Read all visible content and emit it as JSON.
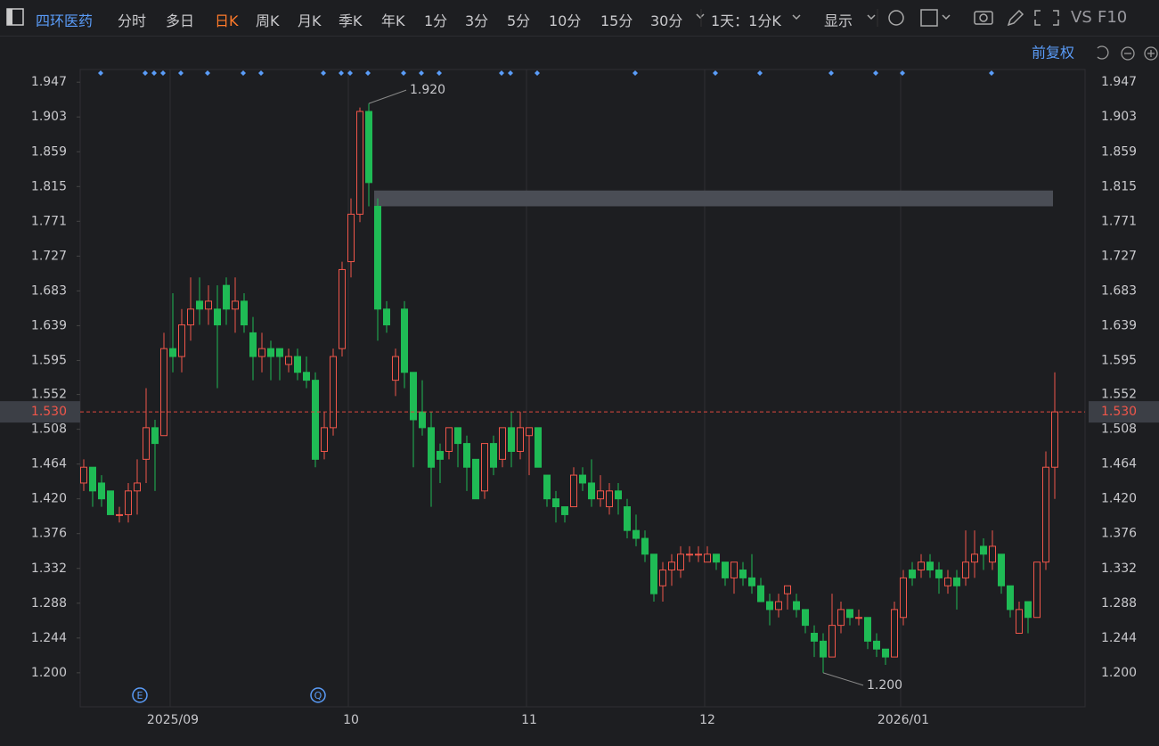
{
  "toolbar": {
    "stock_name": "四环医药",
    "periods": [
      "分时",
      "多日",
      "日K",
      "周K",
      "月K",
      "季K",
      "年K",
      "1分",
      "3分",
      "5分",
      "10分",
      "15分",
      "30分"
    ],
    "active_index": 2,
    "interval": "1天：1分K",
    "display": "显示",
    "vs": "VS",
    "f10": "F10",
    "adjust": "前复权"
  },
  "chart_data": {
    "type": "candlestick",
    "categories": [
      null,
      null,
      null,
      null,
      null,
      null,
      null,
      null,
      null,
      null,
      "2025/09",
      null,
      null,
      null,
      null,
      null,
      null,
      null,
      null,
      null,
      null,
      null,
      null,
      null,
      null,
      null,
      null,
      null,
      null,
      null,
      "10",
      null,
      null,
      null,
      null,
      null,
      null,
      null,
      null,
      null,
      null,
      null,
      null,
      null,
      null,
      null,
      null,
      null,
      null,
      null,
      "11",
      null,
      null,
      null,
      null,
      null,
      null,
      null,
      null,
      null,
      null,
      null,
      null,
      null,
      null,
      null,
      null,
      null,
      null,
      null,
      "12",
      null,
      null,
      null,
      null,
      null,
      null,
      null,
      null,
      null,
      null,
      null,
      null,
      null,
      null,
      null,
      null,
      null,
      null,
      null,
      null,
      null,
      "2026/01",
      null,
      null,
      null,
      null,
      null,
      null,
      null,
      null,
      null,
      null,
      null,
      null,
      null,
      null,
      null,
      null,
      null
    ],
    "open": [
      1.44,
      1.46,
      1.44,
      1.43,
      1.4,
      1.4,
      1.43,
      1.47,
      1.51,
      1.5,
      1.61,
      1.6,
      1.64,
      1.67,
      1.66,
      1.66,
      1.69,
      1.66,
      1.67,
      1.63,
      1.6,
      1.61,
      1.61,
      1.59,
      1.6,
      1.58,
      1.57,
      1.48,
      1.51,
      1.61,
      1.72,
      1.78,
      1.91,
      1.79,
      1.66,
      1.57,
      1.66,
      1.58,
      1.53,
      1.51,
      1.48,
      1.48,
      1.51,
      1.49,
      1.47,
      1.43,
      1.49,
      1.47,
      1.51,
      1.48,
      1.5,
      1.51,
      1.45,
      1.42,
      1.41,
      1.41,
      1.45,
      1.44,
      1.42,
      1.41,
      1.43,
      1.41,
      1.38,
      1.37,
      1.35,
      1.31,
      1.33,
      1.33,
      1.35,
      1.35,
      1.34,
      1.35,
      1.34,
      1.32,
      1.33,
      1.32,
      1.31,
      1.29,
      1.28,
      1.3,
      1.29,
      1.28,
      1.25,
      1.24,
      1.22,
      1.26,
      1.28,
      1.27,
      1.27,
      1.24,
      1.23,
      1.22,
      1.27,
      1.33,
      1.33,
      1.34,
      1.33,
      1.31,
      1.32,
      1.32,
      1.34,
      1.36,
      1.34,
      1.35,
      1.31,
      1.25,
      1.29,
      1.27,
      1.34,
      1.46
    ],
    "high": [
      1.47,
      1.46,
      1.45,
      1.43,
      1.41,
      1.44,
      1.47,
      1.56,
      1.52,
      1.63,
      1.68,
      1.66,
      1.7,
      1.7,
      1.69,
      1.69,
      1.7,
      1.7,
      1.68,
      1.65,
      1.63,
      1.62,
      1.61,
      1.61,
      1.61,
      1.6,
      1.58,
      1.53,
      1.61,
      1.72,
      1.8,
      1.915,
      1.92,
      1.8,
      1.67,
      1.61,
      1.67,
      1.58,
      1.57,
      1.53,
      1.49,
      1.51,
      1.51,
      1.5,
      1.47,
      1.49,
      1.5,
      1.51,
      1.53,
      1.53,
      1.51,
      1.51,
      1.45,
      1.43,
      1.41,
      1.46,
      1.46,
      1.47,
      1.45,
      1.44,
      1.44,
      1.42,
      1.4,
      1.38,
      1.35,
      1.34,
      1.35,
      1.36,
      1.36,
      1.36,
      1.36,
      1.35,
      1.34,
      1.34,
      1.34,
      1.35,
      1.32,
      1.3,
      1.3,
      1.31,
      1.3,
      1.28,
      1.26,
      1.25,
      1.3,
      1.29,
      1.28,
      1.28,
      1.27,
      1.25,
      1.23,
      1.29,
      1.33,
      1.34,
      1.35,
      1.35,
      1.34,
      1.33,
      1.33,
      1.38,
      1.38,
      1.37,
      1.38,
      1.35,
      1.31,
      1.29,
      1.29,
      1.34,
      1.48,
      1.58
    ],
    "low": [
      1.43,
      1.41,
      1.41,
      1.4,
      1.39,
      1.39,
      1.4,
      1.44,
      1.43,
      1.5,
      1.58,
      1.58,
      1.62,
      1.64,
      1.64,
      1.56,
      1.64,
      1.63,
      1.63,
      1.57,
      1.58,
      1.57,
      1.57,
      1.58,
      1.57,
      1.56,
      1.46,
      1.47,
      1.5,
      1.6,
      1.7,
      1.77,
      1.79,
      1.62,
      1.63,
      1.55,
      1.56,
      1.46,
      1.5,
      1.41,
      1.44,
      1.47,
      1.46,
      1.43,
      1.42,
      1.42,
      1.45,
      1.46,
      1.46,
      1.47,
      1.45,
      1.46,
      1.41,
      1.39,
      1.39,
      1.41,
      1.43,
      1.41,
      1.41,
      1.4,
      1.4,
      1.37,
      1.36,
      1.34,
      1.29,
      1.29,
      1.31,
      1.32,
      1.34,
      1.34,
      1.34,
      1.33,
      1.31,
      1.3,
      1.31,
      1.3,
      1.29,
      1.26,
      1.27,
      1.28,
      1.27,
      1.25,
      1.22,
      1.2,
      1.22,
      1.25,
      1.26,
      1.26,
      1.23,
      1.22,
      1.21,
      1.22,
      1.26,
      1.31,
      1.32,
      1.32,
      1.3,
      1.3,
      1.28,
      1.31,
      1.32,
      1.33,
      1.33,
      1.3,
      1.27,
      1.25,
      1.25,
      1.27,
      1.33,
      1.42
    ],
    "close": [
      1.46,
      1.43,
      1.42,
      1.4,
      1.4,
      1.43,
      1.44,
      1.51,
      1.49,
      1.61,
      1.6,
      1.64,
      1.66,
      1.66,
      1.67,
      1.64,
      1.66,
      1.67,
      1.64,
      1.6,
      1.61,
      1.6,
      1.6,
      1.6,
      1.58,
      1.57,
      1.47,
      1.51,
      1.6,
      1.71,
      1.78,
      1.91,
      1.82,
      1.66,
      1.64,
      1.6,
      1.58,
      1.52,
      1.51,
      1.46,
      1.47,
      1.51,
      1.49,
      1.46,
      1.42,
      1.49,
      1.46,
      1.51,
      1.48,
      1.51,
      1.51,
      1.46,
      1.42,
      1.41,
      1.4,
      1.45,
      1.44,
      1.42,
      1.43,
      1.43,
      1.42,
      1.38,
      1.37,
      1.35,
      1.3,
      1.33,
      1.34,
      1.35,
      1.35,
      1.35,
      1.35,
      1.34,
      1.32,
      1.34,
      1.32,
      1.31,
      1.29,
      1.28,
      1.29,
      1.31,
      1.28,
      1.26,
      1.24,
      1.22,
      1.26,
      1.28,
      1.27,
      1.27,
      1.24,
      1.23,
      1.22,
      1.28,
      1.32,
      1.32,
      1.34,
      1.33,
      1.32,
      1.32,
      1.31,
      1.34,
      1.35,
      1.35,
      1.36,
      1.31,
      1.28,
      1.28,
      1.27,
      1.34,
      1.46,
      1.53
    ],
    "up_color": "#f0564a",
    "down_color": "#1fbb55",
    "ylim": [
      1.157,
      1.963
    ],
    "yticks": [
      {
        "value": 1.2,
        "label": "1.200"
      },
      1.244,
      1.288,
      1.332,
      1.376,
      {
        "value": 1.42,
        "label": "1.420"
      },
      1.464,
      1.508,
      1.552,
      1.595,
      1.639,
      1.683,
      1.727,
      1.771,
      1.815,
      1.859,
      1.903,
      1.947
    ],
    "last_price": {
      "value": 1.53,
      "label": "1.530"
    },
    "high_label": {
      "value": 1.92,
      "label": "1.920"
    },
    "low_label": {
      "value": 1.2,
      "label": "1.200"
    },
    "zone": {
      "low": 1.79,
      "high": 1.81
    },
    "events": [
      "E",
      "Q"
    ],
    "grid": true
  }
}
